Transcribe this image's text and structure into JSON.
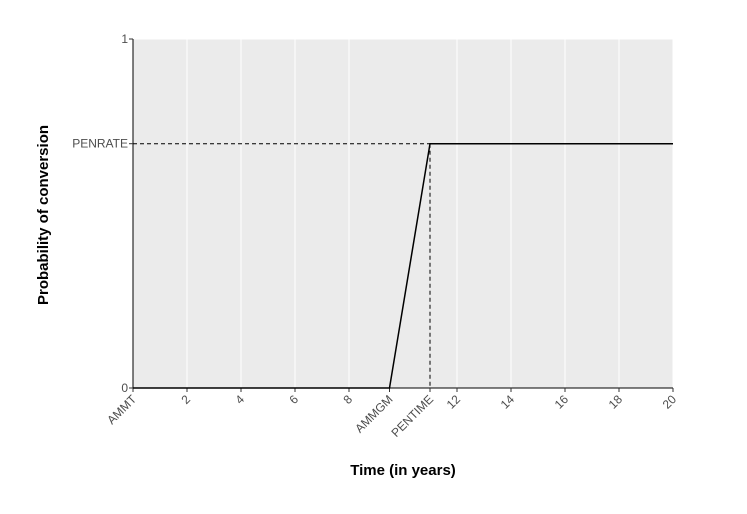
{
  "chart_data": {
    "type": "line",
    "xlabel": "Time (in years)",
    "ylabel": "Probability of conversion",
    "x": [
      0,
      9.5,
      11,
      20
    ],
    "series": [
      {
        "color": "#000000",
        "values": [
          0,
          0,
          0.7,
          0.7
        ]
      }
    ],
    "xlim": [
      0,
      20
    ],
    "ylim": [
      0,
      1
    ],
    "xticks": [
      {
        "value": 0,
        "label": "AMMT"
      },
      2,
      4,
      6,
      8,
      {
        "value": 9.5,
        "label": "AMMGM"
      },
      {
        "value": 11,
        "label": "PENTIME"
      },
      12,
      14,
      16,
      18,
      20
    ],
    "yticks": [
      0,
      {
        "value": 0.7,
        "label": "PENRATE"
      },
      1
    ],
    "grid": true
  }
}
